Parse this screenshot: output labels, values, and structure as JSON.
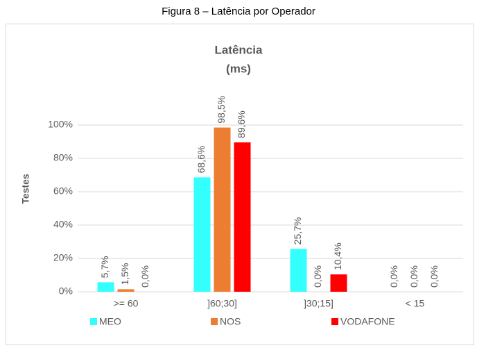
{
  "chart_data": {
    "type": "bar",
    "caption": "Figura 8 – Latência por Operador",
    "title": "Latência",
    "subtitle": "(ms)",
    "y_label": "Testes",
    "categories": [
      ">= 60",
      "]60;30]",
      "]30;15]",
      "< 15"
    ],
    "series": [
      {
        "name": "MEO",
        "color": "#33ffff",
        "values": [
          5.7,
          68.6,
          25.7,
          0
        ],
        "value_labels": [
          "5,7%",
          "68,6%",
          "25,7%",
          "0,0%"
        ]
      },
      {
        "name": "NOS",
        "color": "#ed7d31",
        "values": [
          1.5,
          98.5,
          0,
          0
        ],
        "value_labels": [
          "1,5%",
          "98,5%",
          "0,0%",
          "0,0%"
        ]
      },
      {
        "name": "VODAFONE",
        "color": "#ff0000",
        "values": [
          0,
          89.6,
          10.4,
          0
        ],
        "value_labels": [
          "0,0%",
          "89,6%",
          "10,4%",
          "0,0%"
        ]
      }
    ],
    "ylim": [
      0,
      100
    ],
    "yticks": [
      {
        "value": 0,
        "label": "0%"
      },
      {
        "value": 20,
        "label": "20%"
      },
      {
        "value": 40,
        "label": "40%"
      },
      {
        "value": 60,
        "label": "60%"
      },
      {
        "value": 80,
        "label": "80%"
      },
      {
        "value": 100,
        "label": "100%"
      }
    ],
    "grid": true,
    "legend": "bottom"
  }
}
